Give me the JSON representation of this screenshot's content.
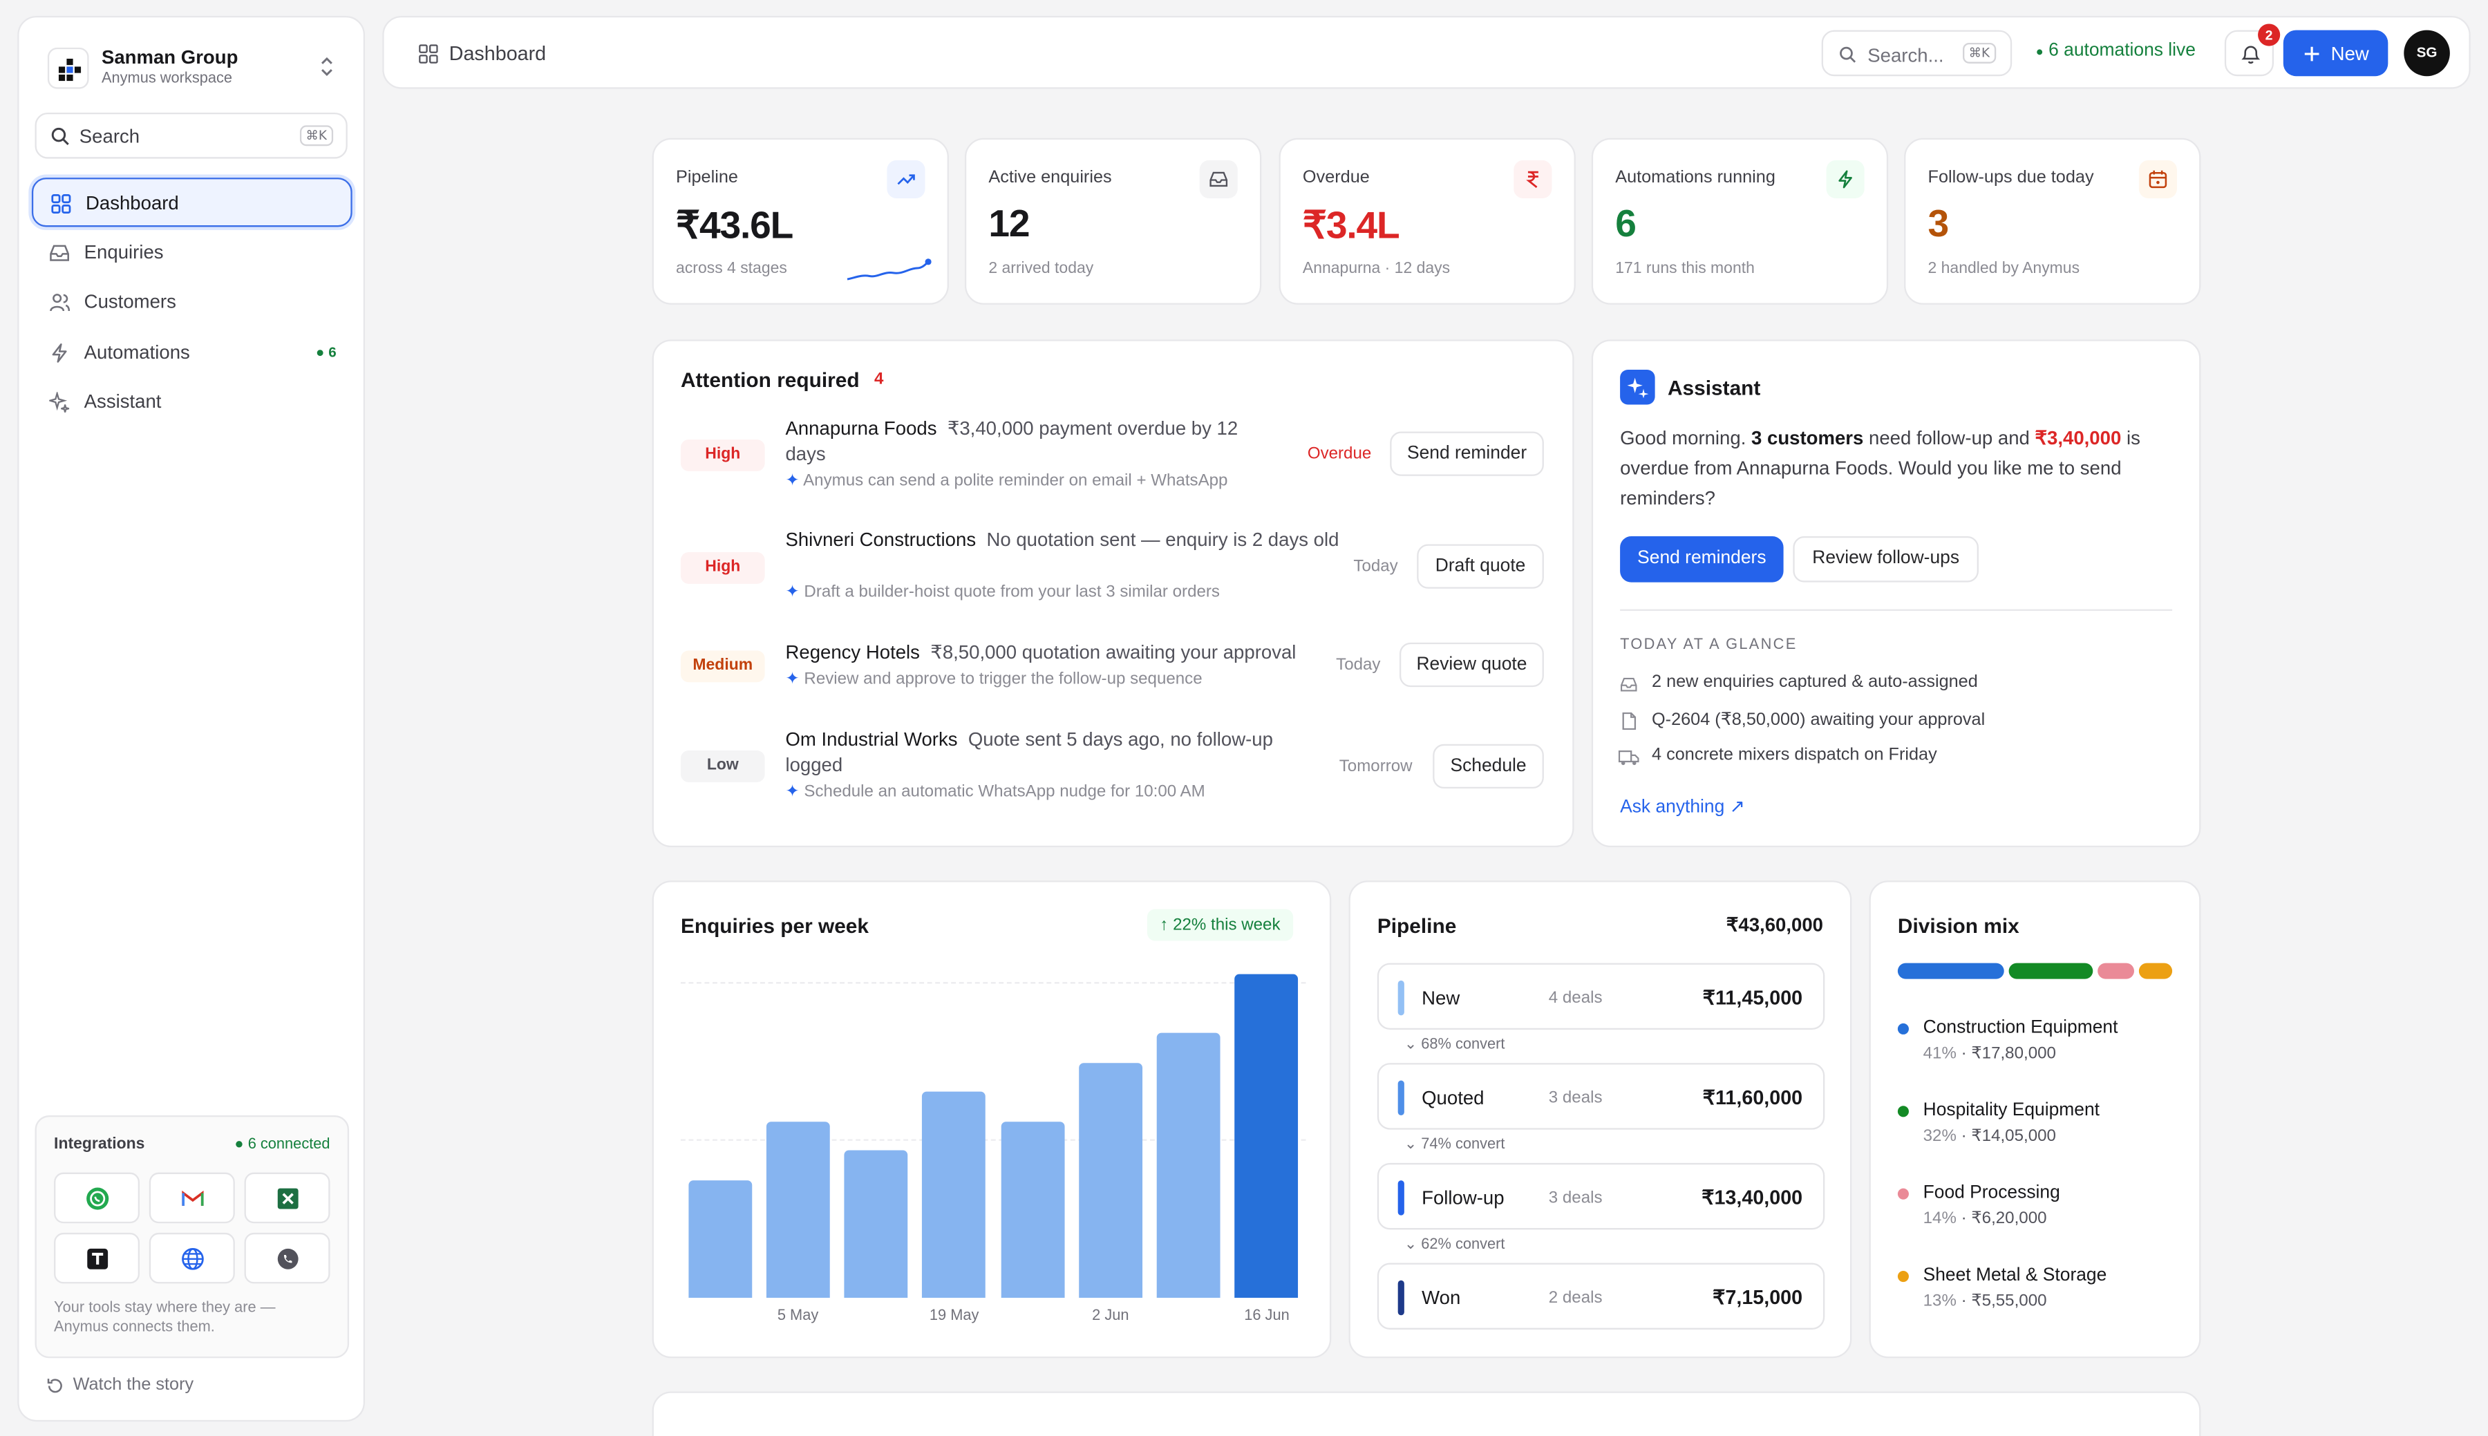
{
  "workspace": {
    "name": "Sanman Group",
    "subtitle": "Anymus workspace"
  },
  "sidebar": {
    "search_label": "Search",
    "search_shortcut": "⌘K",
    "items": [
      {
        "label": "Dashboard",
        "icon": "grid-icon"
      },
      {
        "label": "Enquiries",
        "icon": "inbox-icon"
      },
      {
        "label": "Customers",
        "icon": "users-icon"
      },
      {
        "label": "Automations",
        "icon": "lightning-icon",
        "badge": "6"
      },
      {
        "label": "Assistant",
        "icon": "sparkle-icon"
      }
    ],
    "integrations": {
      "title": "Integrations",
      "connected": "6 connected",
      "note": "Your tools stay where they are — Anymus connects them.",
      "apps": [
        "whatsapp-icon",
        "gmail-icon",
        "excel-icon",
        "tally-icon",
        "globe-icon",
        "phone-icon"
      ]
    },
    "watch_story": "Watch the story"
  },
  "topbar": {
    "breadcrumb": "Dashboard",
    "search_placeholder": "Search...",
    "search_shortcut": "⌘K",
    "automations_live": "6 automations live",
    "notification_count": "2",
    "new_label": "New",
    "avatar_initials": "SG"
  },
  "stats": [
    {
      "title": "Pipeline",
      "value": "₹43.6L",
      "sub": "across 4 stages",
      "icon": "trend-up-icon"
    },
    {
      "title": "Active enquiries",
      "value": "12",
      "sub": "2 arrived today",
      "icon": "inbox-icon"
    },
    {
      "title": "Overdue",
      "value": "₹3.4L",
      "sub": "Annapurna · 12 days",
      "icon": "rupee-icon"
    },
    {
      "title": "Automations running",
      "value": "6",
      "sub": "171 runs this month",
      "icon": "lightning-icon"
    },
    {
      "title": "Follow-ups due today",
      "value": "3",
      "sub": "2 handled by Anymus",
      "icon": "calendar-icon"
    }
  ],
  "colors": {
    "accent": "#2563eb",
    "overdue": "#dc2626",
    "automation": "#15803d",
    "followup": "#b45309"
  },
  "attention": {
    "title": "Attention required",
    "count": "4",
    "items": [
      {
        "priority": "High",
        "company": "Annapurna Foods",
        "desc": "₹3,40,000 payment overdue by 12 days",
        "hint": "Anymus can send a polite reminder on email + WhatsApp",
        "status": "Overdue",
        "action": "Send reminder"
      },
      {
        "priority": "High",
        "company": "Shivneri Constructions",
        "desc": "No quotation sent — enquiry is 2 days old",
        "hint": "Draft a builder-hoist quote from your last 3 similar orders",
        "status": "Today",
        "action": "Draft quote"
      },
      {
        "priority": "Medium",
        "company": "Regency Hotels",
        "desc": "₹8,50,000 quotation awaiting your approval",
        "hint": "Review and approve to trigger the follow-up sequence",
        "status": "Today",
        "action": "Review quote"
      },
      {
        "priority": "Low",
        "company": "Om Industrial Works",
        "desc": "Quote sent 5 days ago, no follow-up logged",
        "hint": "Schedule an automatic WhatsApp nudge for 10:00 AM",
        "status": "Tomorrow",
        "action": "Schedule"
      }
    ]
  },
  "assistant": {
    "title": "Assistant",
    "msg_pre": "Good morning. ",
    "msg_customers": "3 customers",
    "msg_mid": " need follow-up and ",
    "msg_amount": "₹3,40,000",
    "msg_post": " is overdue from Annapurna Foods. Would you like me to send reminders?",
    "primary_action": "Send reminders",
    "secondary_action": "Review follow-ups",
    "glance_title": "TODAY AT A GLANCE",
    "glance": [
      {
        "text": "2 new enquiries captured & auto-assigned",
        "icon": "inbox-icon"
      },
      {
        "text": "Q-2604 (₹8,50,000) awaiting your approval",
        "icon": "document-icon"
      },
      {
        "text": "4 concrete mixers dispatch on Friday",
        "icon": "truck-icon"
      }
    ],
    "ask": "Ask anything"
  },
  "chart_data": {
    "type": "bar",
    "title": "Enquiries per week",
    "badge": "22% this week",
    "categories": [
      "",
      "5 May",
      "",
      "19 May",
      "",
      "2 Jun",
      "",
      "16 Jun"
    ],
    "values": [
      38,
      57,
      48,
      67,
      57,
      76,
      86,
      105
    ],
    "highlight_last": true,
    "ylim": [
      0,
      110
    ],
    "grid": true
  },
  "pipeline": {
    "title": "Pipeline",
    "total": "₹43,60,000",
    "stages": [
      {
        "name": "New",
        "deals": "4 deals",
        "amount": "₹11,45,000",
        "color": "#93c0f5",
        "convert": "68% convert"
      },
      {
        "name": "Quoted",
        "deals": "3 deals",
        "amount": "₹11,60,000",
        "color": "#4f8fe8",
        "convert": "74% convert"
      },
      {
        "name": "Follow-up",
        "deals": "3 deals",
        "amount": "₹13,40,000",
        "color": "#2563eb",
        "convert": "62% convert"
      },
      {
        "name": "Won",
        "deals": "2 deals",
        "amount": "₹7,15,000",
        "color": "#1e3a8a",
        "convert": ""
      }
    ]
  },
  "division": {
    "title": "Division mix",
    "items": [
      {
        "name": "Construction Equipment",
        "pct": "41%",
        "amount": "₹17,80,000",
        "share": 41,
        "color": "#2670d9"
      },
      {
        "name": "Hospitality Equipment",
        "pct": "32%",
        "amount": "₹14,05,000",
        "share": 32,
        "color": "#138a25"
      },
      {
        "name": "Food Processing",
        "pct": "14%",
        "amount": "₹6,20,000",
        "share": 14,
        "color": "#ea8a97"
      },
      {
        "name": "Sheet Metal & Storage",
        "pct": "13%",
        "amount": "₹5,55,000",
        "share": 13,
        "color": "#eca013"
      }
    ]
  }
}
